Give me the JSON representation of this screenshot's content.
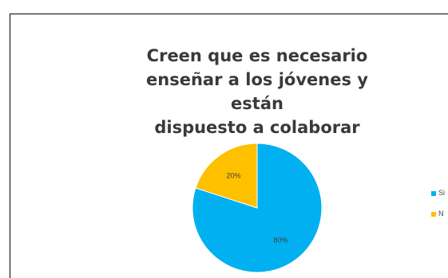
{
  "chart_data": {
    "type": "pie",
    "title_lines": [
      "Creen que es necesario",
      "enseñar a los jóvenes y están",
      "dispuesto a colaborar"
    ],
    "categories": [
      "Si",
      "No"
    ],
    "values": [
      80,
      20
    ],
    "data_labels": [
      "80%",
      "20%"
    ],
    "colors": [
      "#00b0f0",
      "#ffc000"
    ],
    "legend_position": "right",
    "legend_labels_visible": [
      "Si",
      "N"
    ]
  }
}
